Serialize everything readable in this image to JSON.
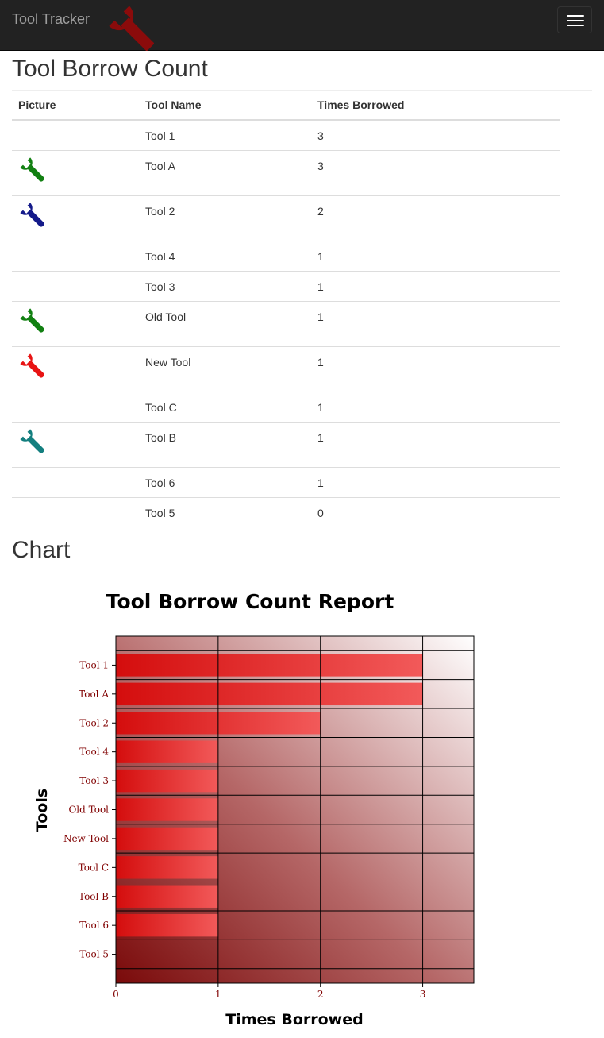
{
  "navbar": {
    "brand": "Tool Tracker",
    "logo_icon": "wrench-icon",
    "menu_icon": "hamburger-icon"
  },
  "page": {
    "title": "Tool Borrow Count",
    "chart_heading": "Chart"
  },
  "table": {
    "headers": [
      "Picture",
      "Tool Name",
      "Times Borrowed"
    ],
    "rows": [
      {
        "name": "Tool 1",
        "count": "3",
        "icon_color": ""
      },
      {
        "name": "Tool A",
        "count": "3",
        "icon_color": "#128012"
      },
      {
        "name": "Tool 2",
        "count": "2",
        "icon_color": "#141a8a"
      },
      {
        "name": "Tool 4",
        "count": "1",
        "icon_color": ""
      },
      {
        "name": "Tool 3",
        "count": "1",
        "icon_color": ""
      },
      {
        "name": "Old Tool",
        "count": "1",
        "icon_color": "#128012"
      },
      {
        "name": "New Tool",
        "count": "1",
        "icon_color": "#e81414"
      },
      {
        "name": "Tool C",
        "count": "1",
        "icon_color": ""
      },
      {
        "name": "Tool B",
        "count": "1",
        "icon_color": "#147f7f"
      },
      {
        "name": "Tool 6",
        "count": "1",
        "icon_color": ""
      },
      {
        "name": "Tool 5",
        "count": "0",
        "icon_color": ""
      }
    ]
  },
  "chart_data": {
    "type": "bar",
    "orientation": "horizontal",
    "title": "Tool Borrow Count Report",
    "xlabel": "Times Borrowed",
    "ylabel": "Tools",
    "categories": [
      "Tool 1",
      "Tool A",
      "Tool 2",
      "Tool 4",
      "Tool 3",
      "Old Tool",
      "New Tool",
      "Tool C",
      "Tool B",
      "Tool 6",
      "Tool 5"
    ],
    "values": [
      3,
      3,
      2,
      1,
      1,
      1,
      1,
      1,
      1,
      1,
      0
    ],
    "xlim": [
      0,
      3.5
    ],
    "xticks": [
      "0",
      "1",
      "2",
      "3"
    ],
    "grid": true,
    "bar_color": "#d40d0d",
    "label_color": "#800000"
  }
}
